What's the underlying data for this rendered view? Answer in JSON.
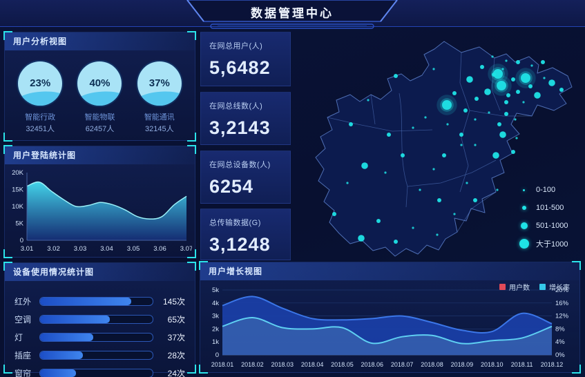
{
  "header": {
    "title": "数据管理中心"
  },
  "panels": {
    "user_analysis": {
      "title": "用户分析视图",
      "gauges": [
        {
          "pct": "23%",
          "label": "智能行政",
          "count": "32451人"
        },
        {
          "pct": "40%",
          "label": "智能物联",
          "count": "62457人"
        },
        {
          "pct": "37%",
          "label": "智能通讯",
          "count": "32145人"
        }
      ]
    },
    "login_stats": {
      "title": "用户登陆统计图"
    },
    "device_usage": {
      "title": "设备使用情况统计图"
    },
    "user_growth": {
      "title": "用户增长视图",
      "legend": [
        {
          "label": "用户数",
          "color": "#e04a58"
        },
        {
          "label": "增长率",
          "color": "#35c9e8"
        }
      ]
    }
  },
  "stat_cards": [
    {
      "label": "在网总用户(人)",
      "value": "5,6482"
    },
    {
      "label": "在网总线数(人)",
      "value": "3,2143"
    },
    {
      "label": "在网总设备数(人)",
      "value": "6254"
    },
    {
      "label": "总传输数据(G)",
      "value": "3,1248"
    }
  ],
  "map": {
    "legend": [
      {
        "label": "0-100"
      },
      {
        "label": "101-500"
      },
      {
        "label": "501-1000"
      },
      {
        "label": "大于1000"
      }
    ],
    "colors": {
      "bubble": "#1fe3e6",
      "border": "#5a7ec8",
      "fill": "#0c1b4e"
    },
    "bubbles": [
      {
        "x": 285,
        "y": 42,
        "s": 1
      },
      {
        "x": 305,
        "y": 48,
        "s": 1
      },
      {
        "x": 322,
        "y": 50,
        "s": 2
      },
      {
        "x": 342,
        "y": 55,
        "s": 1
      },
      {
        "x": 358,
        "y": 50,
        "s": 2
      },
      {
        "x": 300,
        "y": 60,
        "s": 1
      },
      {
        "x": 270,
        "y": 57,
        "s": 2
      },
      {
        "x": 252,
        "y": 75,
        "s": 3
      },
      {
        "x": 262,
        "y": 103,
        "s": 2
      },
      {
        "x": 278,
        "y": 93,
        "s": 3
      },
      {
        "x": 287,
        "y": 68,
        "s": 2
      },
      {
        "x": 293,
        "y": 67,
        "s": 4
      },
      {
        "x": 298,
        "y": 84,
        "s": 4
      },
      {
        "x": 305,
        "y": 108,
        "s": 2
      },
      {
        "x": 308,
        "y": 98,
        "s": 2
      },
      {
        "x": 315,
        "y": 75,
        "s": 2
      },
      {
        "x": 322,
        "y": 93,
        "s": 2
      },
      {
        "x": 330,
        "y": 108,
        "s": 1
      },
      {
        "x": 333,
        "y": 73,
        "s": 4
      },
      {
        "x": 340,
        "y": 85,
        "s": 2
      },
      {
        "x": 350,
        "y": 98,
        "s": 3
      },
      {
        "x": 360,
        "y": 73,
        "s": 1
      },
      {
        "x": 371,
        "y": 80,
        "s": 3
      },
      {
        "x": 385,
        "y": 90,
        "s": 2
      },
      {
        "x": 305,
        "y": 125,
        "s": 2
      },
      {
        "x": 318,
        "y": 133,
        "s": 1
      },
      {
        "x": 295,
        "y": 140,
        "s": 2
      },
      {
        "x": 280,
        "y": 123,
        "s": 1
      },
      {
        "x": 260,
        "y": 133,
        "s": 1
      },
      {
        "x": 246,
        "y": 120,
        "s": 2
      },
      {
        "x": 219,
        "y": 112,
        "s": 4
      },
      {
        "x": 230,
        "y": 95,
        "s": 2
      },
      {
        "x": 200,
        "y": 60,
        "s": 1
      },
      {
        "x": 145,
        "y": 70,
        "s": 2
      },
      {
        "x": 220,
        "y": 140,
        "s": 1
      },
      {
        "x": 240,
        "y": 155,
        "s": 2
      },
      {
        "x": 300,
        "y": 155,
        "s": 3
      },
      {
        "x": 320,
        "y": 160,
        "s": 1
      },
      {
        "x": 290,
        "y": 185,
        "s": 3
      },
      {
        "x": 315,
        "y": 180,
        "s": 2
      },
      {
        "x": 260,
        "y": 170,
        "s": 1
      },
      {
        "x": 105,
        "y": 105,
        "s": 1
      },
      {
        "x": 80,
        "y": 140,
        "s": 2
      },
      {
        "x": 135,
        "y": 155,
        "s": 2
      },
      {
        "x": 170,
        "y": 145,
        "s": 1
      },
      {
        "x": 188,
        "y": 130,
        "s": 1
      },
      {
        "x": 155,
        "y": 185,
        "s": 2
      },
      {
        "x": 200,
        "y": 205,
        "s": 1
      },
      {
        "x": 215,
        "y": 185,
        "s": 2
      },
      {
        "x": 240,
        "y": 170,
        "s": 1
      },
      {
        "x": 100,
        "y": 200,
        "s": 3
      },
      {
        "x": 130,
        "y": 210,
        "s": 1
      },
      {
        "x": 75,
        "y": 225,
        "s": 1
      },
      {
        "x": 180,
        "y": 235,
        "s": 1
      },
      {
        "x": 208,
        "y": 250,
        "s": 2
      },
      {
        "x": 248,
        "y": 225,
        "s": 1
      },
      {
        "x": 260,
        "y": 250,
        "s": 2
      },
      {
        "x": 292,
        "y": 235,
        "s": 1
      },
      {
        "x": 56,
        "y": 270,
        "s": 2
      },
      {
        "x": 120,
        "y": 280,
        "s": 2
      },
      {
        "x": 170,
        "y": 290,
        "s": 1
      },
      {
        "x": 145,
        "y": 310,
        "s": 2
      },
      {
        "x": 95,
        "y": 305,
        "s": 3
      },
      {
        "x": 230,
        "y": 270,
        "s": 1
      },
      {
        "x": 205,
        "y": 300,
        "s": 1
      }
    ]
  },
  "chart_data": [
    {
      "id": "login_chart",
      "type": "area",
      "title": "用户登陆统计图",
      "xlabel": "",
      "ylabel": "",
      "x_ticks": [
        "3.01",
        "3.02",
        "3.03",
        "3.04",
        "3.05",
        "3.06",
        "3.07"
      ],
      "y_ticks": [
        "0",
        "5K",
        "10K",
        "15K",
        "20K"
      ],
      "ylim": [
        0,
        20
      ],
      "values": [
        16,
        17.2,
        14.5,
        12,
        10,
        10.3,
        11.2,
        10.5,
        9,
        7,
        6.3,
        7,
        10.5,
        13
      ]
    },
    {
      "id": "device_chart",
      "type": "bar",
      "title": "设备使用情况统计图",
      "categories": [
        "红外",
        "空调",
        "灯",
        "插座",
        "窗帘"
      ],
      "values": [
        145,
        65,
        37,
        28,
        24
      ],
      "unit": "次",
      "fill_pct": [
        81,
        62,
        47,
        38,
        32
      ]
    },
    {
      "id": "growth_chart",
      "type": "area-dual",
      "title": "用户增长视图",
      "x": [
        "2018.01",
        "2018.02",
        "2018.03",
        "2018.04",
        "2018.05",
        "2018.06",
        "2018.07",
        "2018.08",
        "2018.09",
        "2018.10",
        "2018.11",
        "2018.12"
      ],
      "left_ticks": [
        "0",
        "1k",
        "2k",
        "3k",
        "4k",
        "5k"
      ],
      "right_ticks": [
        "0%",
        "4%",
        "8%",
        "12%",
        "16%",
        "20%"
      ],
      "left_lim": [
        0,
        5
      ],
      "right_lim": [
        0,
        20
      ],
      "series": [
        {
          "name": "用户数",
          "axis": "left",
          "values": [
            3.8,
            4.5,
            3.6,
            2.8,
            2.7,
            2.8,
            3.0,
            2.5,
            1.9,
            1.8,
            3.2,
            2.4
          ],
          "color": "#3b76e8",
          "fill": "#1a3fa8"
        },
        {
          "name": "增长率",
          "axis": "right",
          "values": [
            8.8,
            11.5,
            8.4,
            8.0,
            8.4,
            3.6,
            5.6,
            6.0,
            3.5,
            4.4,
            5.2,
            8.8
          ],
          "color": "#5fd0f2",
          "fill": "#4a7ab8"
        }
      ]
    }
  ]
}
